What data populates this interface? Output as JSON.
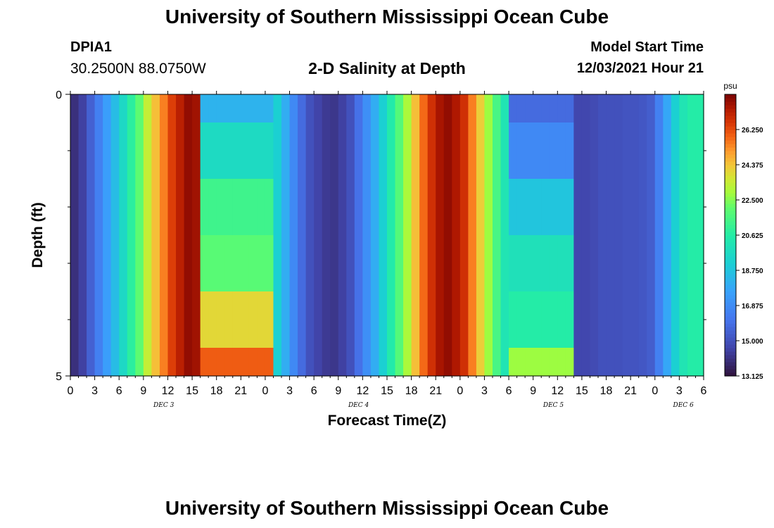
{
  "page": {
    "title_top": "University of Southern Mississippi Ocean Cube",
    "title_bottom": "University of Southern Mississippi Ocean Cube",
    "station": "DPIA1",
    "coords": "30.2500N  88.0750W",
    "subtitle": "2-D Salinity at Depth",
    "model_start_label": "Model Start Time",
    "model_start_value": "12/03/2021 Hour 21"
  },
  "chart_data": {
    "type": "heatmap",
    "title": "2-D Salinity at Depth",
    "xlabel": "Forecast Time(Z)",
    "ylabel": "Depth (ft)",
    "xlim": [
      0,
      78
    ],
    "ylim": [
      0,
      5
    ],
    "y_ticks": [
      "0",
      "5"
    ],
    "x_tick_labels": [
      "0",
      "3",
      "6",
      "9",
      "12",
      "15",
      "18",
      "21",
      "0",
      "3",
      "6",
      "9",
      "12",
      "15",
      "18",
      "21",
      "0",
      "3",
      "6",
      "9",
      "12",
      "15",
      "18",
      "21",
      "0",
      "3",
      "6"
    ],
    "day_labels": [
      {
        "label": "DEC 3",
        "x": 11.5
      },
      {
        "label": "DEC 4",
        "x": 35.5
      },
      {
        "label": "DEC 5",
        "x": 59.5
      },
      {
        "label": "DEC 6",
        "x": 75.5
      }
    ],
    "colorbar": {
      "unit": "psu",
      "min": 13.125,
      "max": 28.125,
      "tick_labels": [
        "26.250",
        "24.375",
        "22.500",
        "20.625",
        "18.750",
        "16.875",
        "15.000",
        "13.125"
      ],
      "tick_values": [
        26.25,
        24.375,
        22.5,
        20.625,
        18.75,
        16.875,
        15.0,
        13.125
      ]
    },
    "depth_layers": [
      {
        "from": 0,
        "to": 0.5
      },
      {
        "from": 0.5,
        "to": 1.5
      },
      {
        "from": 1.5,
        "to": 2.5
      },
      {
        "from": 2.5,
        "to": 3.5
      },
      {
        "from": 3.5,
        "to": 4.5
      },
      {
        "from": 4.5,
        "to": 5
      }
    ],
    "profile": {
      "hours": [
        0,
        1,
        2,
        3,
        4,
        5,
        6,
        7,
        8,
        9,
        10,
        11,
        12,
        13,
        14,
        15,
        16,
        17,
        18,
        19,
        20,
        21,
        22,
        23,
        24,
        25,
        26,
        27,
        28,
        29,
        30,
        31,
        32,
        33,
        34,
        35,
        36,
        37,
        38,
        39,
        40,
        41,
        42,
        43,
        44,
        45,
        46,
        47,
        48,
        49,
        50,
        51,
        52,
        53,
        54,
        55,
        56,
        57,
        58,
        59,
        60,
        61,
        62,
        63,
        64,
        65,
        66,
        67,
        68,
        69,
        70,
        71,
        72,
        73,
        74,
        75,
        76,
        77
      ],
      "base": [
        14.0,
        14.5,
        15.5,
        16.5,
        17.5,
        18.5,
        19.6,
        20.8,
        22.0,
        23.4,
        24.5,
        25.5,
        26.5,
        27.2,
        27.8,
        27.6,
        27.0,
        26.5,
        26.0,
        25.3,
        24.5,
        23.5,
        22.5,
        21.2,
        20.2,
        19.2,
        18.0,
        16.8,
        15.8,
        15.0,
        14.6,
        14.3,
        14.2,
        14.5,
        15.0,
        16.0,
        17.0,
        18.0,
        19.2,
        20.5,
        21.8,
        23.0,
        24.5,
        25.8,
        26.8,
        27.5,
        27.8,
        27.4,
        26.8,
        25.5,
        24.2,
        22.8,
        21.5,
        20.2,
        19.0,
        18.0,
        17.0,
        16.2,
        15.6,
        15.2,
        15.0,
        14.8,
        14.7,
        14.7,
        14.8,
        15.0,
        15.0,
        15.0,
        15.1,
        15.1,
        15.2,
        15.4,
        16.5,
        17.8,
        19.2,
        20.2,
        20.6,
        20.6
      ]
    },
    "plateaus": [
      {
        "x0": 16,
        "x1": 24,
        "values": [
          17.8,
          19.4,
          21.2,
          21.6,
          23.6,
          25.8
        ]
      },
      {
        "x0": 16,
        "x1": 24,
        "values": [
          18.2,
          19.7,
          21.3,
          21.9,
          24.0,
          26.0
        ]
      },
      {
        "x0": 54,
        "x1": 61,
        "values": [
          15.8,
          16.8,
          18.8,
          20.0,
          20.6,
          22.8
        ]
      }
    ]
  }
}
